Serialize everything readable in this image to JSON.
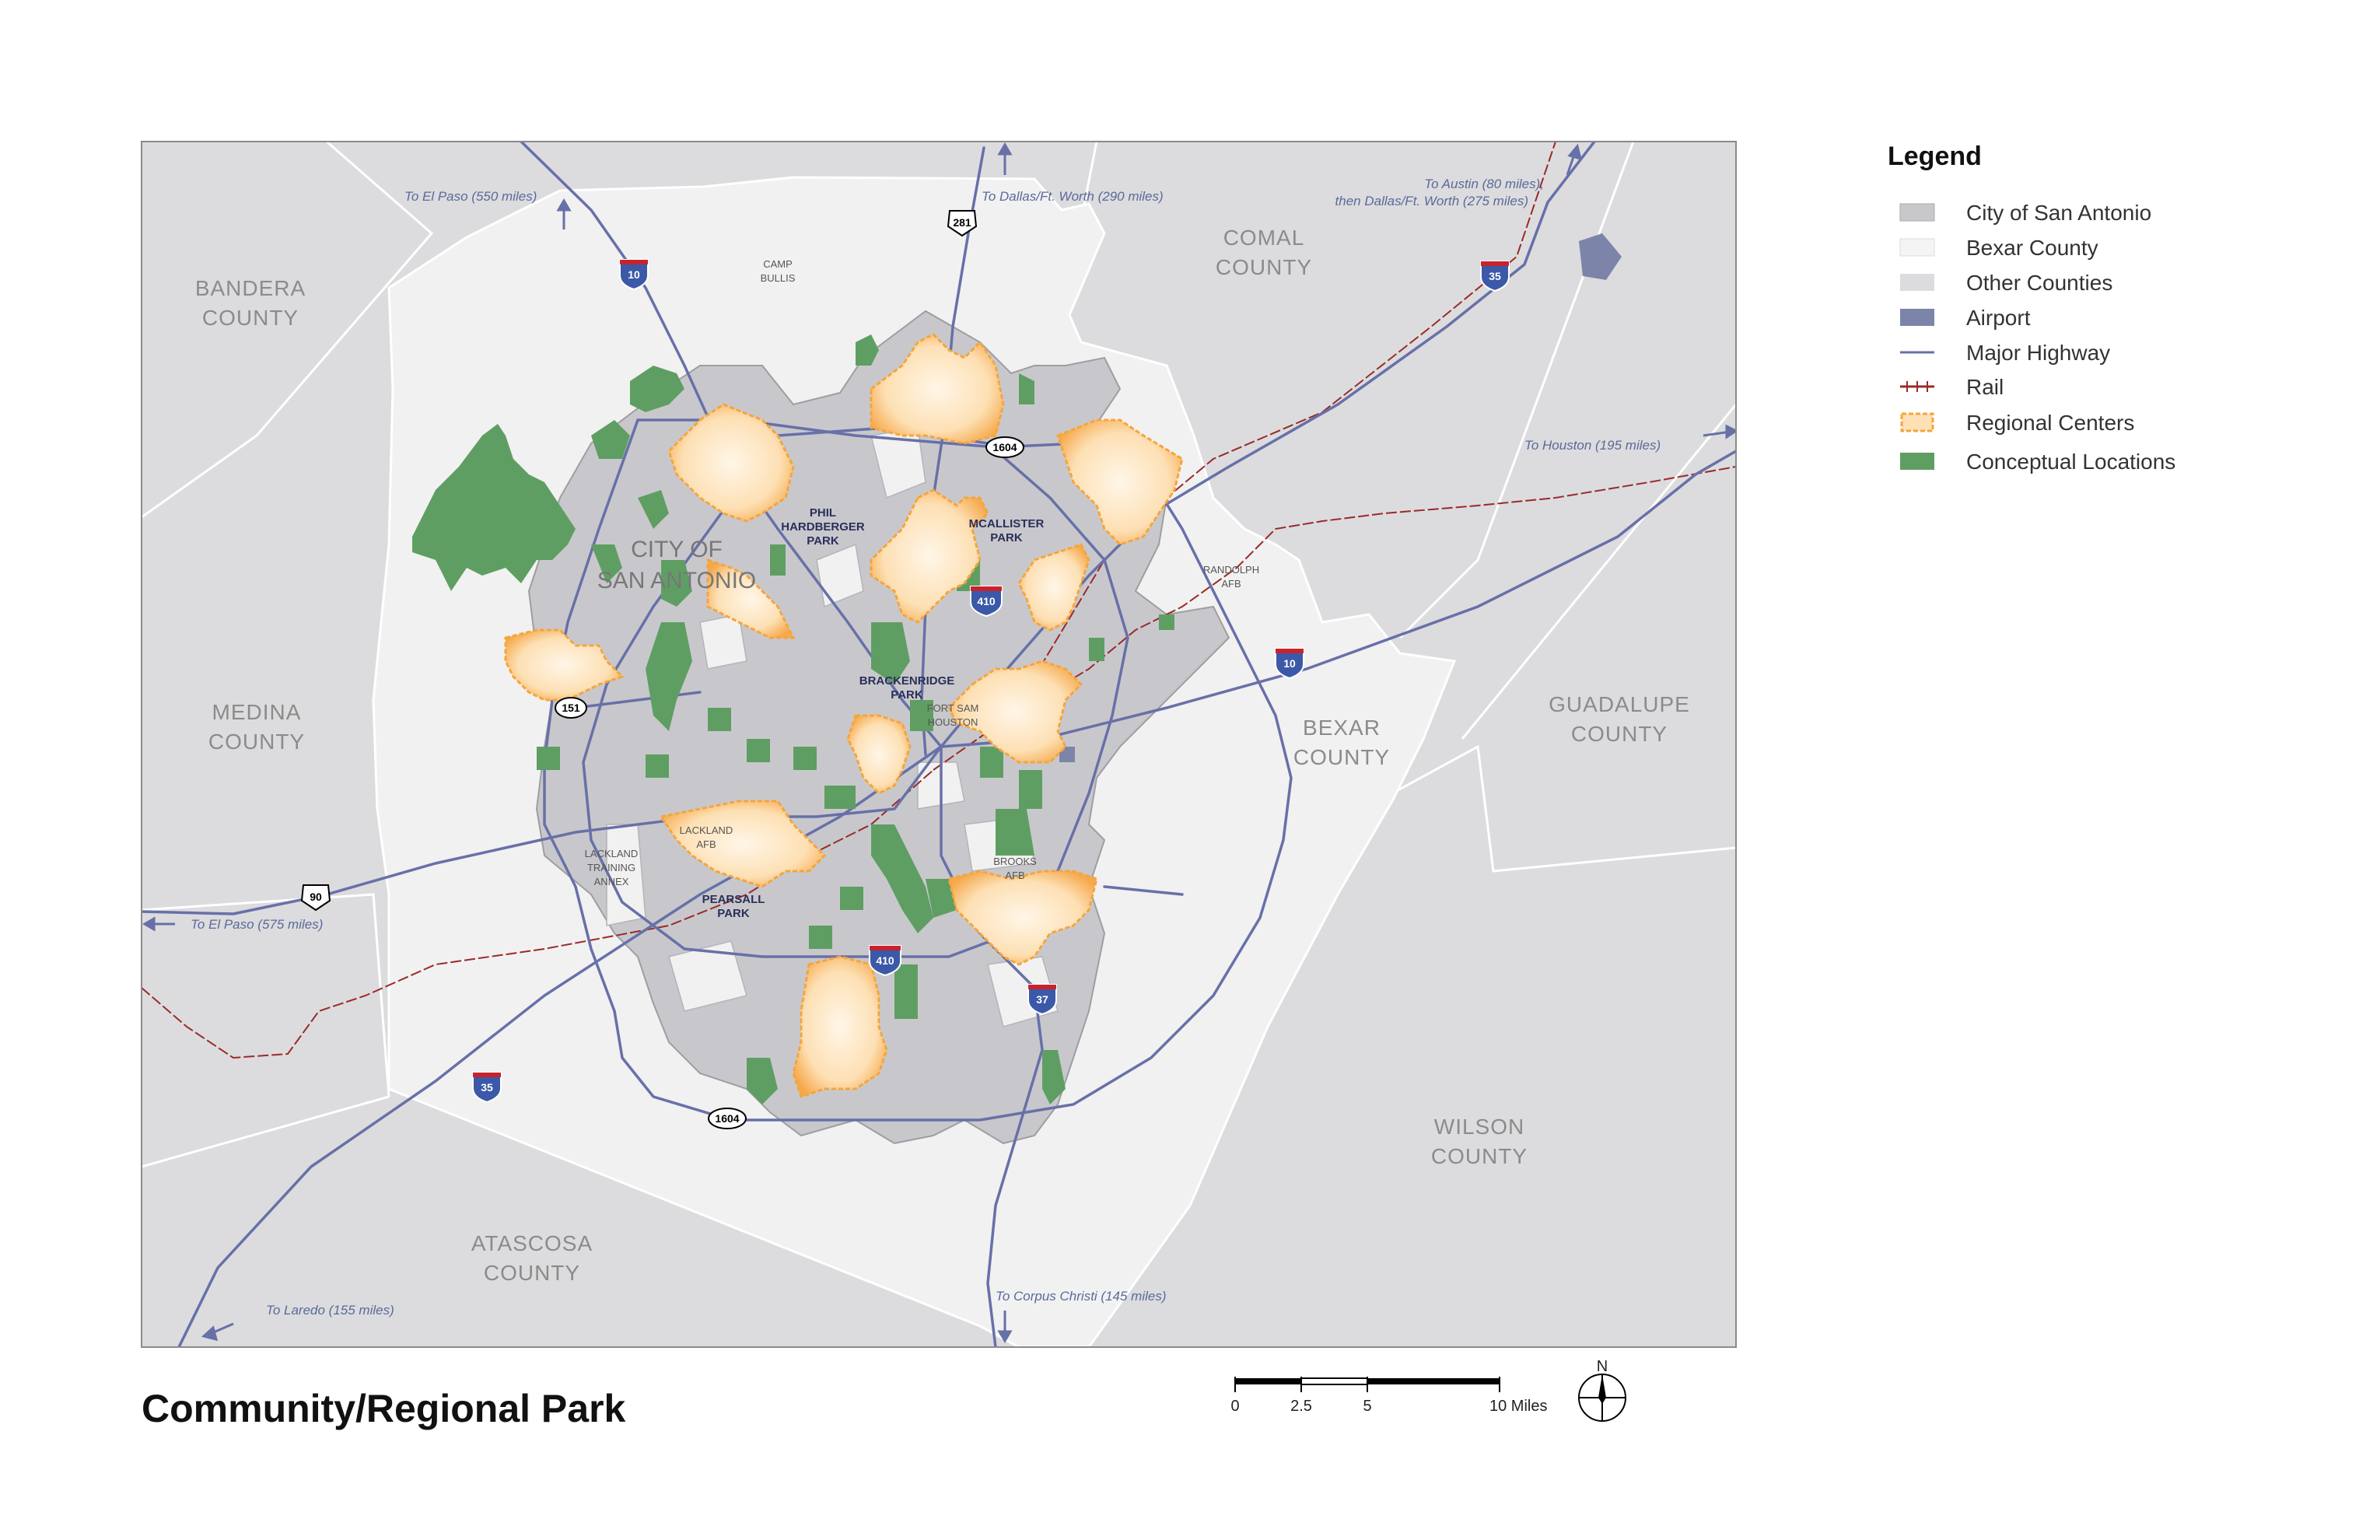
{
  "title": "Community/Regional Park",
  "legend": {
    "title": "Legend",
    "items": [
      {
        "label": "City of San Antonio",
        "type": "swatch",
        "color": "#c8c8cc"
      },
      {
        "label": "Bexar County",
        "type": "swatch",
        "color": "#f4f4f4"
      },
      {
        "label": "Other Counties",
        "type": "swatch",
        "color": "#dcdcde"
      },
      {
        "label": "Airport",
        "type": "swatch",
        "color": "#7c84aa"
      },
      {
        "label": "Major Highway",
        "type": "line",
        "color": "#6870a8"
      },
      {
        "label": "Rail",
        "type": "rail",
        "color": "#9a2a2a"
      },
      {
        "label": "Regional Centers",
        "type": "dashed",
        "color": "#f6a53a"
      },
      {
        "label": "Conceptual Locations",
        "type": "swatch",
        "color": "#5f9e63"
      }
    ]
  },
  "counties": {
    "bandera": [
      "BANDERA",
      "COUNTY"
    ],
    "comal": [
      "COMAL",
      "COUNTY"
    ],
    "medina": [
      "MEDINA",
      "COUNTY"
    ],
    "bexar": [
      "BEXAR",
      "COUNTY"
    ],
    "guadalupe": [
      "GUADALUPE",
      "COUNTY"
    ],
    "wilson": [
      "WILSON",
      "COUNTY"
    ],
    "atascosa": [
      "ATASCOSA",
      "COUNTY"
    ]
  },
  "city_label": [
    "CITY OF",
    "SAN ANTONIO"
  ],
  "destinations": {
    "el_paso_north": "To El Paso (550 miles)",
    "dallas": "To Dallas/Ft. Worth (290 miles)",
    "austin": [
      "To Austin (80 miles),",
      "then Dallas/Ft. Worth (275 miles)"
    ],
    "houston": "To Houston (195 miles)",
    "el_paso_west": "To El Paso (575 miles)",
    "laredo": "To Laredo (155 miles)",
    "corpus": "To Corpus Christi (145 miles)"
  },
  "parks": {
    "phil": [
      "PHIL",
      "HARDBERGER",
      "PARK"
    ],
    "mcallister": [
      "MCALLISTER",
      "PARK"
    ],
    "brackenridge": [
      "BRACKENRIDGE",
      "PARK"
    ],
    "pearsall": [
      "PEARSALL",
      "PARK"
    ]
  },
  "bases": {
    "camp_bullis": [
      "CAMP",
      "BULLIS"
    ],
    "randolph": [
      "RANDOLPH",
      "AFB"
    ],
    "fort_sam": [
      "FORT SAM",
      "HOUSTON"
    ],
    "lackland": [
      "LACKLAND",
      "AFB"
    ],
    "lackland_annex": [
      "LACKLAND",
      "TRAINING",
      "ANNEX"
    ],
    "brooks": [
      "BROOKS",
      "AFB"
    ]
  },
  "shields": {
    "i10_north": "10",
    "i35_north": "35",
    "i410_north": "410",
    "i10_east": "10",
    "i410_south": "410",
    "i37": "37",
    "i35_south": "35",
    "us281": "281",
    "loop1604_north": "1604",
    "loop1604_south": "1604",
    "sh151": "151",
    "us90": "90"
  },
  "scale_bar": {
    "labels": [
      "0",
      "2.5",
      "5",
      "10 Miles"
    ]
  },
  "north_arrow": "N"
}
